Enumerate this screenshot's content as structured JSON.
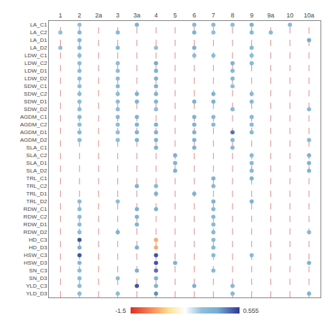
{
  "chart_data": {
    "type": "dot_matrix",
    "x_categories": [
      "1",
      "2",
      "2a",
      "3",
      "3a",
      "4",
      "5",
      "6",
      "7",
      "8",
      "9",
      "9a",
      "10",
      "10a"
    ],
    "y_categories": [
      "LA_C1",
      "LA_C2",
      "LA_D1",
      "LA_D2",
      "LDW_C1",
      "LDW_C2",
      "LDW_D1",
      "LDW_D2",
      "SDW_C1",
      "SDW_C2",
      "SDW_D1",
      "SDW_D2",
      "AGDM_C1",
      "AGDM_C2",
      "AGDM_D1",
      "AGDM_D2",
      "SLA_C1",
      "SLA_C2",
      "SLA_D1",
      "SLA_D2",
      "TRL_C1",
      "TRL_C2",
      "TRL_D1",
      "TRL_D2",
      "RDW_C1",
      "RDW_C2",
      "RDW_D1",
      "RDW_D2",
      "HD_C3",
      "HD_D3",
      "HSW_C3",
      "HSW_D3",
      "SN_C3",
      "SN_D3",
      "YLD_C3",
      "YLD_D3"
    ],
    "dots": [
      [
        0,
        1,
        0.3
      ],
      [
        0,
        4,
        0.5
      ],
      [
        0,
        7,
        0.4
      ],
      [
        0,
        8,
        0.4
      ],
      [
        0,
        9,
        0.35
      ],
      [
        0,
        10,
        0.5
      ],
      [
        0,
        12,
        0.4
      ],
      [
        1,
        0,
        0.3
      ],
      [
        1,
        1,
        0.4
      ],
      [
        1,
        3,
        0.4
      ],
      [
        1,
        7,
        0.5
      ],
      [
        1,
        8,
        0.3
      ],
      [
        1,
        10,
        0.4
      ],
      [
        1,
        11,
        0.4
      ],
      [
        2,
        1,
        0.4
      ],
      [
        2,
        13,
        0.6
      ],
      [
        3,
        0,
        0.3
      ],
      [
        3,
        1,
        0.4
      ],
      [
        3,
        3,
        0.4
      ],
      [
        3,
        5,
        0.3
      ],
      [
        3,
        7,
        0.5
      ],
      [
        3,
        10,
        0.4
      ],
      [
        4,
        1,
        0.35
      ],
      [
        4,
        7,
        0.35
      ],
      [
        4,
        8,
        0.35
      ],
      [
        4,
        10,
        0.35
      ],
      [
        5,
        1,
        0.35
      ],
      [
        5,
        3,
        0.35
      ],
      [
        5,
        5,
        0.6
      ],
      [
        5,
        9,
        0.5
      ],
      [
        5,
        10,
        0.4
      ],
      [
        6,
        1,
        0.35
      ],
      [
        6,
        3,
        0.35
      ],
      [
        6,
        5,
        0.5
      ],
      [
        6,
        9,
        0.4
      ],
      [
        7,
        1,
        0.35
      ],
      [
        7,
        3,
        0.35
      ],
      [
        7,
        5,
        0.5
      ],
      [
        7,
        9,
        0.4
      ],
      [
        8,
        1,
        0.35
      ],
      [
        8,
        3,
        0.4
      ],
      [
        8,
        5,
        0.5
      ],
      [
        8,
        9,
        0.35
      ],
      [
        9,
        1,
        0.35
      ],
      [
        9,
        3,
        0.35
      ],
      [
        9,
        4,
        0.5
      ],
      [
        9,
        5,
        0.5
      ],
      [
        9,
        8,
        0.5
      ],
      [
        9,
        10,
        0.4
      ],
      [
        10,
        1,
        0.35
      ],
      [
        10,
        3,
        0.35
      ],
      [
        10,
        4,
        0.5
      ],
      [
        10,
        5,
        0.45
      ],
      [
        10,
        7,
        0.5
      ],
      [
        10,
        8,
        0.5
      ],
      [
        10,
        10,
        0.4
      ],
      [
        11,
        1,
        0.35
      ],
      [
        11,
        3,
        0.35
      ],
      [
        11,
        5,
        0.35
      ],
      [
        11,
        9,
        0.4
      ],
      [
        11,
        13,
        0.4
      ],
      [
        12,
        1,
        0.4
      ],
      [
        12,
        3,
        0.4
      ],
      [
        12,
        4,
        0.5
      ],
      [
        12,
        7,
        0.5
      ],
      [
        12,
        8,
        0.4
      ],
      [
        12,
        10,
        0.4
      ],
      [
        13,
        1,
        0.35
      ],
      [
        13,
        3,
        0.35
      ],
      [
        13,
        4,
        0.5
      ],
      [
        13,
        5,
        0.5
      ],
      [
        13,
        7,
        0.5
      ],
      [
        13,
        8,
        0.4
      ],
      [
        13,
        10,
        0.4
      ],
      [
        14,
        1,
        0.4
      ],
      [
        14,
        3,
        0.35
      ],
      [
        14,
        4,
        0.5
      ],
      [
        14,
        5,
        0.5
      ],
      [
        14,
        7,
        0.5
      ],
      [
        14,
        9,
        0.8
      ],
      [
        14,
        10,
        0.4
      ],
      [
        15,
        1,
        0.35
      ],
      [
        15,
        3,
        0.35
      ],
      [
        15,
        4,
        0.5
      ],
      [
        15,
        5,
        0.5
      ],
      [
        15,
        7,
        0.5
      ],
      [
        15,
        9,
        0.4
      ],
      [
        15,
        13,
        0.4
      ],
      [
        16,
        5,
        0.5
      ],
      [
        16,
        7,
        0.5
      ],
      [
        16,
        9,
        0.4
      ],
      [
        17,
        6,
        0.5
      ],
      [
        17,
        10,
        0.4
      ],
      [
        17,
        13,
        0.5
      ],
      [
        18,
        6,
        0.5
      ],
      [
        18,
        10,
        0.4
      ],
      [
        18,
        13,
        0.5
      ],
      [
        19,
        6,
        0.5
      ],
      [
        19,
        10,
        0.4
      ],
      [
        19,
        13,
        0.5
      ],
      [
        20,
        8,
        0.5
      ],
      [
        20,
        10,
        0.5
      ],
      [
        21,
        4,
        0.5
      ],
      [
        21,
        5,
        0.4
      ],
      [
        21,
        8,
        0.4
      ],
      [
        22,
        5,
        0.5
      ],
      [
        22,
        7,
        0.5
      ],
      [
        23,
        1,
        0.35
      ],
      [
        23,
        3,
        0.35
      ],
      [
        23,
        8,
        0.5
      ],
      [
        23,
        10,
        0.5
      ],
      [
        24,
        1,
        0.35
      ],
      [
        24,
        4,
        0.5
      ],
      [
        24,
        5,
        0.5
      ],
      [
        24,
        8,
        0.4
      ],
      [
        25,
        1,
        0.35
      ],
      [
        25,
        4,
        0.5
      ],
      [
        25,
        8,
        0.4
      ],
      [
        26,
        1,
        0.35
      ],
      [
        26,
        4,
        0.5
      ],
      [
        26,
        8,
        0.4
      ],
      [
        27,
        1,
        0.35
      ],
      [
        27,
        3,
        0.5
      ],
      [
        27,
        8,
        0.4
      ],
      [
        27,
        13,
        0.4
      ],
      [
        28,
        1,
        0.9
      ],
      [
        28,
        5,
        -0.5
      ],
      [
        28,
        8,
        0.35
      ],
      [
        29,
        1,
        0.5
      ],
      [
        29,
        4,
        0.5
      ],
      [
        29,
        5,
        -0.5
      ],
      [
        29,
        8,
        0.4
      ],
      [
        30,
        1,
        0.9
      ],
      [
        30,
        5,
        0.9
      ],
      [
        30,
        8,
        0.4
      ],
      [
        30,
        10,
        0.4
      ],
      [
        31,
        1,
        0.4
      ],
      [
        31,
        5,
        0.9
      ],
      [
        31,
        6,
        0.5
      ],
      [
        31,
        13,
        0.5
      ],
      [
        32,
        1,
        0.35
      ],
      [
        32,
        4,
        0.5
      ],
      [
        32,
        5,
        0.8
      ],
      [
        32,
        8,
        0.4
      ],
      [
        33,
        1,
        0.35
      ],
      [
        33,
        3,
        0.35
      ],
      [
        33,
        5,
        0.5
      ],
      [
        34,
        1,
        0.35
      ],
      [
        34,
        4,
        0.9
      ],
      [
        34,
        5,
        0.5
      ],
      [
        34,
        7,
        0.5
      ],
      [
        34,
        9,
        0.4
      ],
      [
        35,
        1,
        0.35
      ],
      [
        35,
        3,
        0.35
      ],
      [
        35,
        5,
        0.7
      ],
      [
        35,
        9,
        0.4
      ],
      [
        35,
        13,
        0.5
      ]
    ],
    "colorbar": {
      "range": [
        -1.0,
        1.0
      ],
      "ticks": [],
      "label_left": "-1.5",
      "label_right": "0.555",
      "colorscale": [
        [
          0.0,
          "#d73027"
        ],
        [
          0.2,
          "#fc8d59"
        ],
        [
          0.35,
          "#fee090"
        ],
        [
          0.5,
          "#ffffff"
        ],
        [
          0.65,
          "#91bfdb"
        ],
        [
          0.8,
          "#74add1"
        ],
        [
          1.0,
          "#313695"
        ]
      ]
    },
    "color": "#cc4444",
    "grid": false
  }
}
